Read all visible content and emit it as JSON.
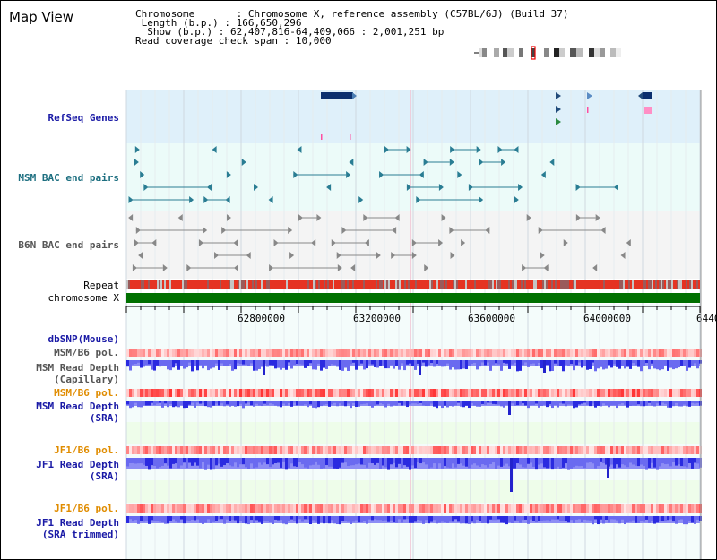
{
  "app": {
    "title": "Map View"
  },
  "header": {
    "chromosome_label": "Chromosome",
    "chromosome_value": "Chromosome X, reference assembly (C57BL/6J) (Build 37)",
    "length_label": "Length (b.p.)",
    "length_value": "166,650,296",
    "show_label": "Show (b.p.)",
    "show_value": "62,407,816-64,409,066 : 2,001,251 bp",
    "coverage_label": "Read coverage check span",
    "coverage_value": "10,000"
  },
  "tracks": {
    "refseq": "RefSeq Genes",
    "msm_bac": "MSM BAC end pairs",
    "b6n_bac": "B6N BAC end pairs",
    "repeat": "Repeat",
    "chromosome": "chromosome X",
    "dbsnp": "dbSNP(Mouse)",
    "msm_b6_pol_cap": "MSM/B6 pol.",
    "msm_depth_cap_1": "MSM Read Depth",
    "msm_depth_cap_2": "(Capillary)",
    "msm_b6_pol_sra": "MSM/B6 pol.",
    "msm_depth_sra_1": "MSM Read Depth",
    "msm_depth_sra_2": "(SRA)",
    "jf1_b6_pol_sra": "JF1/B6 pol.",
    "jf1_depth_sra_1": "JF1 Read Depth",
    "jf1_depth_sra_2": "(SRA)",
    "jf1_b6_pol_trim": "JF1/B6 pol.",
    "jf1_depth_trim_1": "JF1 Read Depth",
    "jf1_depth_trim_2": "(SRA trimmed)"
  },
  "ruler": {
    "ticks": [
      "62800000",
      "63200000",
      "63600000",
      "64000000",
      "6440"
    ]
  },
  "colors": {
    "refseq_bg": "#dff0fa",
    "bac_bg": "#ecfbf9",
    "b6n_bg": "#f4f4f4",
    "gene": "#0b2f6e",
    "msm_feature": "#2a7d93",
    "b6n_feature": "#888888",
    "repeat": "#e53322",
    "chromosome": "#007000",
    "polymorphism": "#f08080",
    "depth": "#3333ee",
    "highlight": "#ff4fa0"
  }
}
